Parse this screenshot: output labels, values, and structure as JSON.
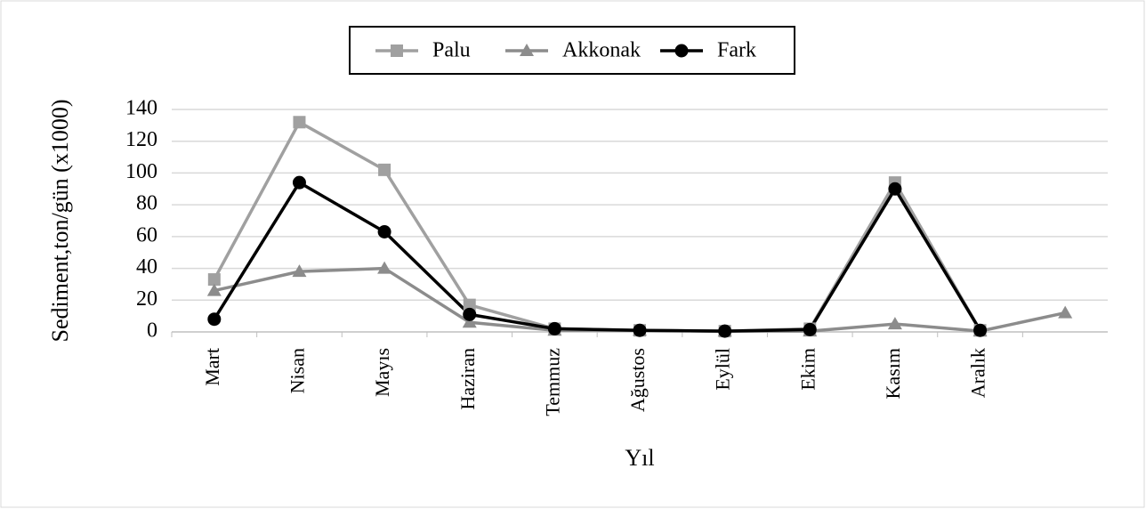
{
  "chart_data": {
    "type": "line",
    "categories": [
      "Mart",
      "Nisan",
      "Mayıs",
      "Haziran",
      "Temmuz",
      "Ağustos",
      "Eylül",
      "Ekim",
      "Kasım",
      "Aralık",
      null
    ],
    "series": [
      {
        "name": "Palu",
        "color": "#a0a0a0",
        "marker": "square",
        "values": [
          33,
          132,
          102,
          17,
          2,
          1,
          0.5,
          2,
          94,
          1,
          null
        ]
      },
      {
        "name": "Akkonak",
        "color": "#8c8c8c",
        "marker": "triangle",
        "values": [
          26,
          38,
          40,
          6,
          1,
          1,
          0.5,
          0.5,
          5,
          0.5,
          12
        ]
      },
      {
        "name": "Fark",
        "color": "#000000",
        "marker": "circle",
        "values": [
          8,
          94,
          63,
          11,
          2,
          1,
          0.5,
          1.5,
          90,
          1,
          null
        ]
      }
    ],
    "xlabel": "Yıl",
    "ylabel": "Sediment,ton/gün (x1000)",
    "ylim": [
      0,
      140
    ],
    "yticks": [
      0,
      20,
      40,
      60,
      80,
      100,
      120,
      140
    ],
    "grid": true,
    "legend": "top"
  }
}
